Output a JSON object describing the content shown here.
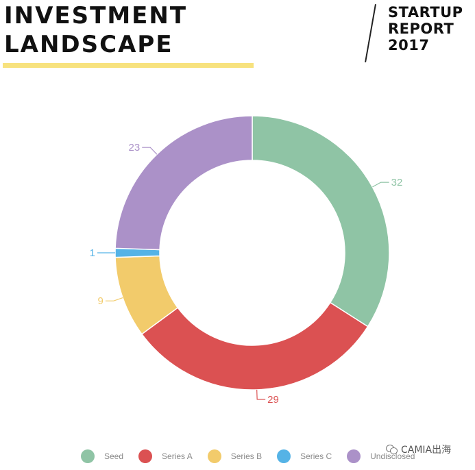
{
  "header": {
    "title_line1": "INVESTMENT",
    "title_line2": "LANDSCAPE",
    "report_line1": "STARTUP",
    "report_line2": "REPORT",
    "report_line3": "2017"
  },
  "watermark": {
    "text": "CAMIA出海"
  },
  "chart_data": {
    "type": "pie",
    "variant": "donut",
    "title": "",
    "categories": [
      "Seed",
      "Series A",
      "Series B",
      "Series C",
      "Undisclosed"
    ],
    "values": [
      32,
      29,
      9,
      1,
      23
    ],
    "colors": [
      "#8fc4a5",
      "#db5152",
      "#f2cb6b",
      "#55b3e6",
      "#ab91c8"
    ],
    "legend_position": "bottom",
    "data_labels": true
  }
}
